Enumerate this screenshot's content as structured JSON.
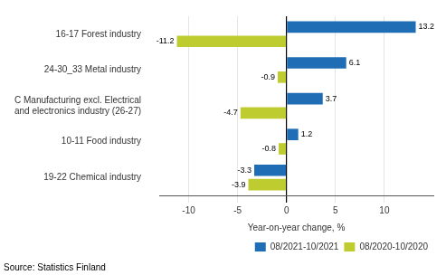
{
  "chart_data": {
    "type": "bar",
    "orientation": "horizontal",
    "categories": [
      "19-22 Chemical industry",
      "10-11 Food industry",
      "C Manufacturing excl. Electrical\nand electronics industry (26-27)",
      "24-30_33 Metal industry",
      "16-17 Forest industry"
    ],
    "series": [
      {
        "name": "08/2021-10/2021",
        "color": "#1f6eb5",
        "values": [
          -3.3,
          1.2,
          3.7,
          6.1,
          13.2
        ]
      },
      {
        "name": "08/2020-10/2020",
        "color": "#bfcc30",
        "values": [
          -3.9,
          -0.8,
          -4.7,
          -0.9,
          -11.2
        ]
      }
    ],
    "xlabel": "Year-on-year change, %",
    "xlim": [
      -13,
      15
    ],
    "xticks": [
      -10,
      -5,
      0,
      5,
      10
    ],
    "grid": true,
    "legend": "lower right",
    "data_labels": true,
    "annotations": [
      "Source: Statistics Finland"
    ]
  }
}
